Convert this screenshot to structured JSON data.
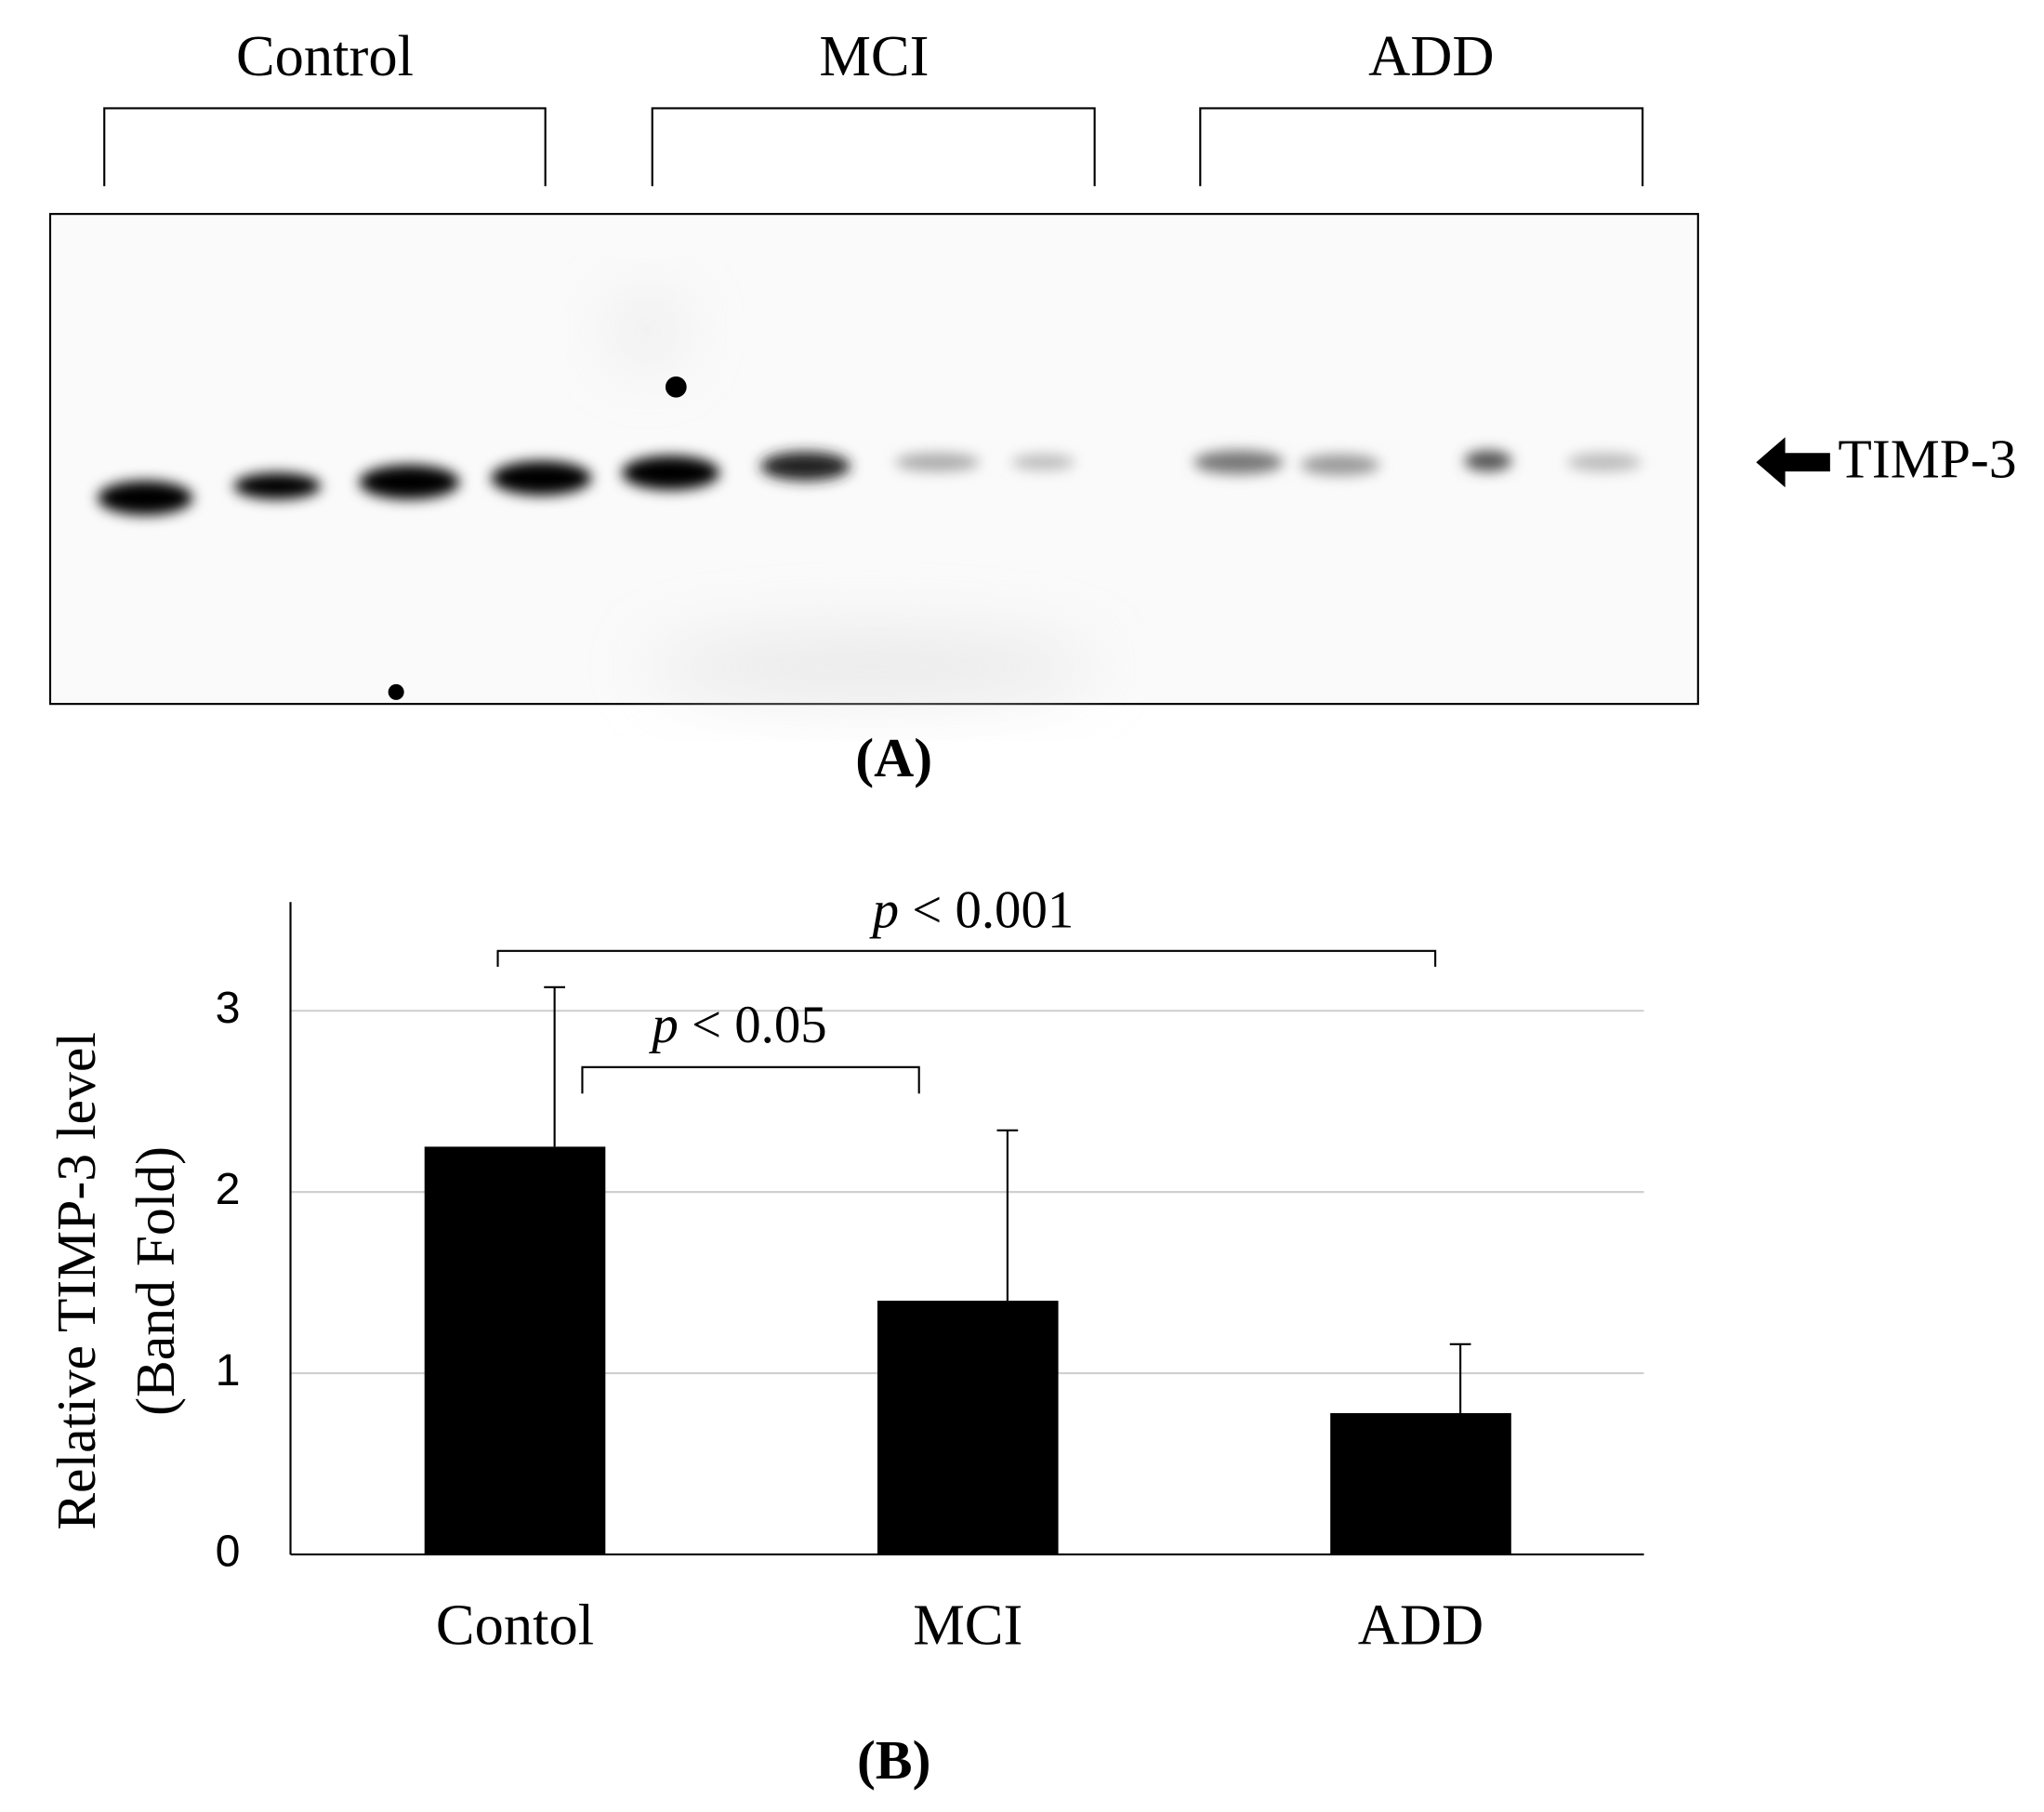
{
  "blot": {
    "groups": [
      "Control",
      "MCI",
      "ADD"
    ],
    "band_label": "TIMP-3",
    "panel_label": "(A)"
  },
  "chart_data": {
    "type": "bar",
    "ylabel": [
      "Relative TIMP-3 level",
      "(Band Fold)"
    ],
    "categories": [
      "Contol",
      "MCI",
      "ADD"
    ],
    "values": [
      2.25,
      1.4,
      0.78
    ],
    "errors": [
      0.88,
      0.94,
      0.38
    ],
    "color": "#000000",
    "ylim": [
      0,
      3.6
    ],
    "yticks": [
      0,
      1,
      2,
      3
    ],
    "grid": true,
    "annotations": [
      "p < 0.001",
      "p < 0.05"
    ],
    "panel_label": "(B)"
  }
}
